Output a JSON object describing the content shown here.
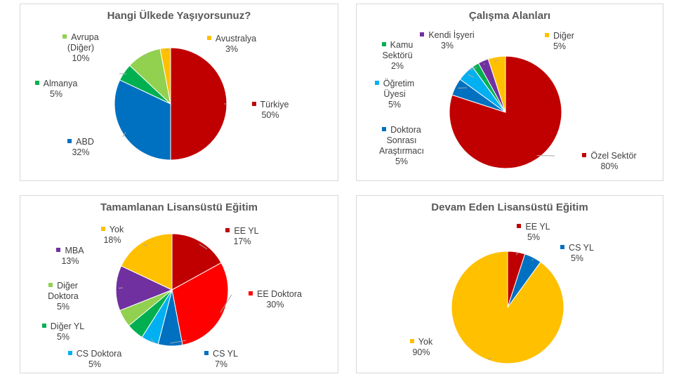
{
  "chart_data": [
    {
      "type": "pie",
      "title": "Hangi Ülkede Yaşıyorsunuz?",
      "categories": [
        "Türkiye",
        "ABD",
        "Almanya",
        "Avrupa (Diğer)",
        "Avustralya"
      ],
      "values": [
        50,
        32,
        5,
        10,
        3
      ],
      "value_labels": [
        "50%",
        "32%",
        "5%",
        "10%",
        "3%"
      ],
      "colors": [
        "#c00000",
        "#0070c0",
        "#00b050",
        "#92d050",
        "#ffc000"
      ]
    },
    {
      "type": "pie",
      "title": "Çalışma Alanları",
      "categories": [
        "Özel Sektör",
        "Doktora Sonrası Araştırmacı",
        "Öğretim Üyesi",
        "Kamu Sektörü",
        "Kendi İşyeri",
        "Diğer"
      ],
      "values": [
        80,
        5,
        5,
        2,
        3,
        5
      ],
      "value_labels": [
        "80%",
        "5%",
        "5%",
        "2%",
        "3%",
        "5%"
      ],
      "colors": [
        "#c00000",
        "#0070c0",
        "#00b0f0",
        "#00b050",
        "#7030a0",
        "#ffc000"
      ]
    },
    {
      "type": "pie",
      "title": "Tamamlanan Lisansüstü Eğitim",
      "categories": [
        "EE YL",
        "EE Doktora",
        "CS YL",
        "CS Doktora",
        "Diğer YL",
        "Diğer Doktora",
        "MBA",
        "Yok"
      ],
      "values": [
        17,
        30,
        7,
        5,
        5,
        5,
        13,
        18
      ],
      "value_labels": [
        "17%",
        "30%",
        "7%",
        "5%",
        "5%",
        "5%",
        "13%",
        "18%"
      ],
      "colors": [
        "#c00000",
        "#ff0000",
        "#0070c0",
        "#00b0f0",
        "#00b050",
        "#92d050",
        "#7030a0",
        "#ffc000"
      ]
    },
    {
      "type": "pie",
      "title": "Devam Eden Lisansüstü Eğitim",
      "categories": [
        "EE YL",
        "CS YL",
        "Yok"
      ],
      "values": [
        5,
        5,
        90
      ],
      "value_labels": [
        "5%",
        "5%",
        "90%"
      ],
      "colors": [
        "#c00000",
        "#0070c0",
        "#ffc000"
      ]
    }
  ]
}
